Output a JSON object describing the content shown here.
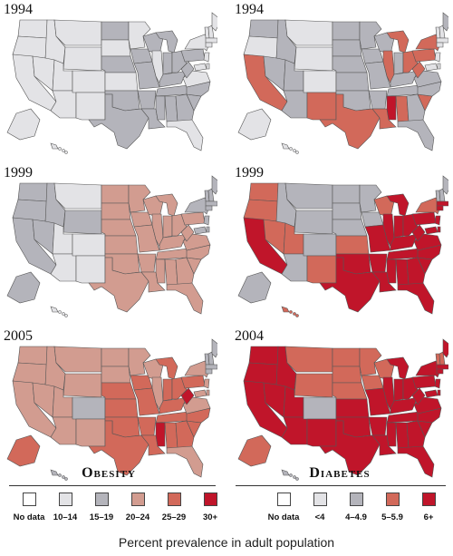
{
  "colors": {
    "nodata": "#ffffff",
    "c1": "#e3e3e6",
    "c2": "#b4b4bb",
    "c3": "#d29c90",
    "c4": "#d2695a",
    "c5": "#c0152a",
    "border": "#555555"
  },
  "maps": [
    {
      "id": "obesity-1994",
      "year": "1994",
      "base": "c1",
      "patches": [
        [
          "ms",
          "c2"
        ],
        [
          "la",
          "c2"
        ],
        [
          "ok",
          "c2"
        ],
        [
          "ar",
          "c2"
        ],
        [
          "tn",
          "c2"
        ],
        [
          "in",
          "c2"
        ],
        [
          "oh",
          "c2"
        ],
        [
          "mi",
          "c2"
        ],
        [
          "tx",
          "c2"
        ],
        [
          "ga",
          "c2"
        ],
        [
          "sc",
          "c2"
        ],
        [
          "ky",
          "c2"
        ],
        [
          "mo",
          "c2"
        ],
        [
          "ia",
          "c2"
        ],
        [
          "wi",
          "c2"
        ],
        [
          "wv",
          "c2"
        ],
        [
          "al",
          "c2"
        ],
        [
          "nc",
          "c2"
        ],
        [
          "ne",
          "c2"
        ],
        [
          "nd",
          "c2"
        ],
        [
          "pa",
          "c2"
        ]
      ]
    },
    {
      "id": "diabetes-1994",
      "year": "1994",
      "base": "c1",
      "patches": [
        [
          "ca",
          "c4"
        ],
        [
          "tx",
          "c4"
        ],
        [
          "nm",
          "c4"
        ],
        [
          "ms",
          "c5"
        ],
        [
          "la",
          "c4"
        ],
        [
          "al",
          "c4"
        ],
        [
          "sc",
          "c4"
        ],
        [
          "ga",
          "c2"
        ],
        [
          "mi",
          "c4"
        ],
        [
          "il",
          "c4"
        ],
        [
          "oh",
          "c4"
        ],
        [
          "pa",
          "c4"
        ],
        [
          "ny",
          "c4"
        ],
        [
          "wv",
          "c4"
        ],
        [
          "ky",
          "c2"
        ],
        [
          "tn",
          "c2"
        ],
        [
          "mo",
          "c2"
        ],
        [
          "ar",
          "c2"
        ],
        [
          "wa",
          "c2"
        ],
        [
          "id",
          "c2"
        ],
        [
          "nv",
          "c2"
        ],
        [
          "ut",
          "c2"
        ],
        [
          "az",
          "c2"
        ],
        [
          "ks",
          "c2"
        ],
        [
          "ok",
          "c2"
        ],
        [
          "ia",
          "c2"
        ],
        [
          "wi",
          "c2"
        ],
        [
          "mn",
          "c2"
        ],
        [
          "in",
          "c2"
        ],
        [
          "fl",
          "c2"
        ],
        [
          "nc",
          "c2"
        ],
        [
          "va",
          "c2"
        ],
        [
          "ne",
          "c2"
        ],
        [
          "nd",
          "c2"
        ],
        [
          "sd",
          "c2"
        ],
        [
          "me",
          "c2"
        ],
        [
          "hi",
          "c1"
        ],
        [
          "ak",
          "c1"
        ]
      ]
    },
    {
      "id": "obesity-1999",
      "year": "1999",
      "base": "c2",
      "patches": [
        [
          "tx",
          "c3"
        ],
        [
          "ok",
          "c3"
        ],
        [
          "ks",
          "c3"
        ],
        [
          "ne",
          "c3"
        ],
        [
          "sd",
          "c3"
        ],
        [
          "ia",
          "c3"
        ],
        [
          "mo",
          "c3"
        ],
        [
          "ar",
          "c3"
        ],
        [
          "la",
          "c3"
        ],
        [
          "ms",
          "c3"
        ],
        [
          "al",
          "c3"
        ],
        [
          "ga",
          "c3"
        ],
        [
          "sc",
          "c3"
        ],
        [
          "nc",
          "c3"
        ],
        [
          "tn",
          "c3"
        ],
        [
          "ky",
          "c3"
        ],
        [
          "wv",
          "c3"
        ],
        [
          "va",
          "c3"
        ],
        [
          "oh",
          "c3"
        ],
        [
          "in",
          "c3"
        ],
        [
          "il",
          "c3"
        ],
        [
          "mi",
          "c3"
        ],
        [
          "wi",
          "c3"
        ],
        [
          "mn",
          "c3"
        ],
        [
          "fl",
          "c3"
        ],
        [
          "pa",
          "c3"
        ],
        [
          "nd",
          "c3"
        ],
        [
          "co",
          "c1"
        ],
        [
          "mt",
          "c1"
        ],
        [
          "ut",
          "c1"
        ],
        [
          "az",
          "c1"
        ],
        [
          "nm",
          "c1"
        ],
        [
          "hi",
          "c1"
        ],
        [
          "ak",
          "c2"
        ]
      ]
    },
    {
      "id": "diabetes-1999",
      "year": "1999",
      "base": "c5",
      "patches": [
        [
          "wa",
          "c4"
        ],
        [
          "or",
          "c4"
        ],
        [
          "id",
          "c2"
        ],
        [
          "nv",
          "c4"
        ],
        [
          "ut",
          "c4"
        ],
        [
          "az",
          "c2"
        ],
        [
          "nm",
          "c4"
        ],
        [
          "co",
          "c2"
        ],
        [
          "wy",
          "c2"
        ],
        [
          "mt",
          "c2"
        ],
        [
          "nd",
          "c2"
        ],
        [
          "sd",
          "c2"
        ],
        [
          "ne",
          "c2"
        ],
        [
          "ks",
          "c4"
        ],
        [
          "mn",
          "c2"
        ],
        [
          "ia",
          "c2"
        ],
        [
          "wi",
          "c4"
        ],
        [
          "me",
          "c2"
        ],
        [
          "vt",
          "c2"
        ],
        [
          "nh",
          "c2"
        ],
        [
          "ny",
          "c4"
        ],
        [
          "hi",
          "c4"
        ],
        [
          "ak",
          "c2"
        ]
      ]
    },
    {
      "id": "obesity-2005",
      "year": "2005",
      "base": "c3",
      "patches": [
        [
          "co",
          "c2"
        ],
        [
          "hi",
          "c2"
        ],
        [
          "ma",
          "c2"
        ],
        [
          "vt",
          "c2"
        ],
        [
          "ct",
          "c2"
        ],
        [
          "nh",
          "c2"
        ],
        [
          "me",
          "c2"
        ],
        [
          "ms",
          "c5"
        ],
        [
          "wv",
          "c5"
        ],
        [
          "la",
          "c4"
        ],
        [
          "tx",
          "c4"
        ],
        [
          "ok",
          "c4"
        ],
        [
          "ar",
          "c4"
        ],
        [
          "al",
          "c4"
        ],
        [
          "ga",
          "c4"
        ],
        [
          "sc",
          "c4"
        ],
        [
          "tn",
          "c4"
        ],
        [
          "ky",
          "c4"
        ],
        [
          "ne",
          "c4"
        ],
        [
          "in",
          "c4"
        ],
        [
          "oh",
          "c4"
        ],
        [
          "mi",
          "c4"
        ],
        [
          "ia",
          "c4"
        ],
        [
          "mo",
          "c4"
        ],
        [
          "ks",
          "c4"
        ],
        [
          "nc",
          "c4"
        ],
        [
          "pa",
          "c4"
        ],
        [
          "ak",
          "c4"
        ]
      ]
    },
    {
      "id": "diabetes-2004",
      "year": "2004",
      "base": "c5",
      "patches": [
        [
          "co",
          "c2"
        ],
        [
          "mt",
          "c4"
        ],
        [
          "wy",
          "c4"
        ],
        [
          "nd",
          "c4"
        ],
        [
          "sd",
          "c4"
        ],
        [
          "ne",
          "c4"
        ],
        [
          "mn",
          "c4"
        ],
        [
          "wi",
          "c4"
        ],
        [
          "ia",
          "c4"
        ],
        [
          "vt",
          "c4"
        ],
        [
          "nh",
          "c4"
        ],
        [
          "ak",
          "c4"
        ],
        [
          "hi",
          "c2"
        ]
      ]
    }
  ],
  "legends": [
    {
      "id": "obesity",
      "title": "Obesity",
      "items": [
        {
          "label": "No data",
          "color": "nodata"
        },
        {
          "label": "10–14",
          "color": "c1"
        },
        {
          "label": "15–19",
          "color": "c2"
        },
        {
          "label": "20–24",
          "color": "c3"
        },
        {
          "label": "25–29",
          "color": "c4"
        },
        {
          "label": "30+",
          "color": "c5"
        }
      ]
    },
    {
      "id": "diabetes",
      "title": "Diabetes",
      "items": [
        {
          "label": "No data",
          "color": "nodata"
        },
        {
          "label": "<4",
          "color": "c1"
        },
        {
          "label": "4–4.9",
          "color": "c2"
        },
        {
          "label": "5–5.9",
          "color": "c4"
        },
        {
          "label": "6+",
          "color": "c5"
        }
      ]
    }
  ],
  "caption": "Percent prevalence in adult population"
}
